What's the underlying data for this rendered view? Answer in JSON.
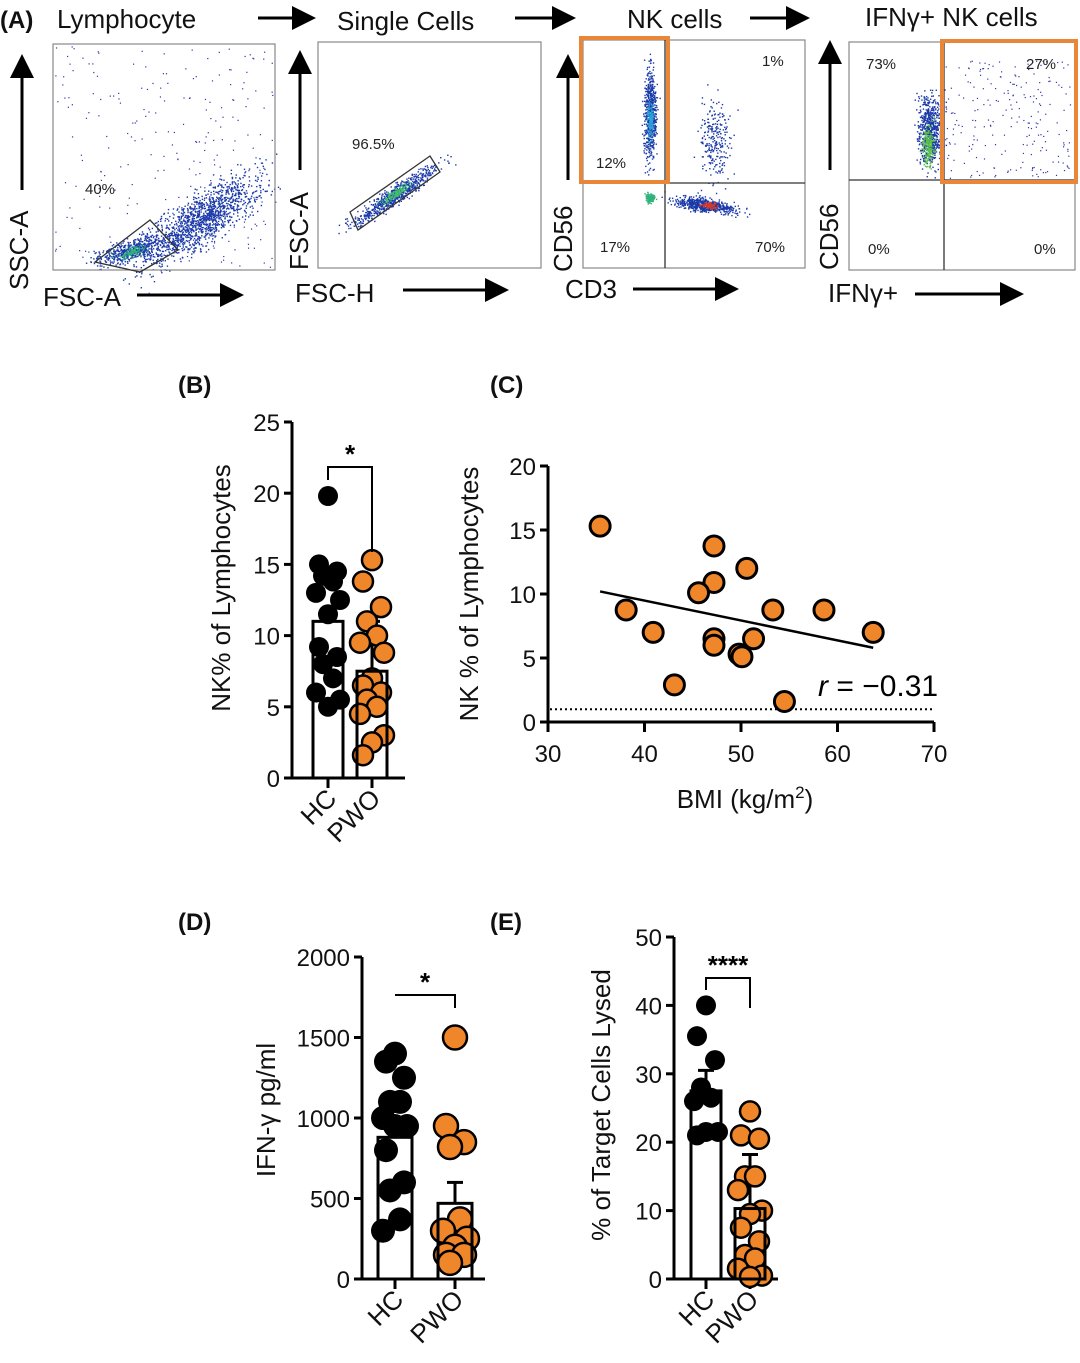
{
  "colors": {
    "hc": "#000000",
    "pwo": "#f0862a",
    "gate": "#e8873a"
  },
  "panel_a": {
    "label": "(A)",
    "steps": [
      "Lymphocyte",
      "Single Cells",
      "NK cells",
      "IFNγ+ NK cells"
    ],
    "plots": [
      {
        "ylabel": "SSC-A",
        "xlabel": "FSC-A",
        "gates": [
          "40%"
        ]
      },
      {
        "ylabel": "FSC-A",
        "xlabel": "FSC-H",
        "gates": [
          "96.5%"
        ]
      },
      {
        "ylabel": "CD56",
        "xlabel": "CD3",
        "gates": [
          "12%",
          "1%",
          "17%",
          "70%"
        ]
      },
      {
        "ylabel": "CD56",
        "xlabel": "IFNγ+",
        "gates": [
          "73%",
          "27%",
          "0%",
          "0%"
        ]
      }
    ]
  },
  "chart_data": [
    {
      "panel": "(B)",
      "type": "bar",
      "categories": [
        "HC",
        "PWO"
      ],
      "ylabel": "NK% of Lymphocytes",
      "ylim": [
        0,
        25
      ],
      "yticks": [
        "0",
        "5",
        "10",
        "15",
        "20",
        "25"
      ],
      "series": [
        {
          "values": [
            11.0,
            7.5
          ],
          "error_upper": [
            null,
            11.0
          ],
          "points": [
            [
              19.8,
              15,
              14.5,
              14.2,
              13.8,
              13,
              12.5,
              11.5,
              9.2,
              8.5,
              8,
              7,
              6,
              5.5,
              5
            ],
            [
              15.3,
              13.8,
              12,
              11,
              10,
              9.5,
              8.8,
              7,
              6.5,
              6,
              5.5,
              5,
              4.5,
              3,
              2.5,
              1.6
            ]
          ]
        }
      ],
      "significance": "*"
    },
    {
      "panel": "(C)",
      "type": "scatter",
      "xlabel": "BMI (kg/m",
      "xlabel_sup": "2",
      "xlabel_end": ")",
      "ylabel": "NK % of Lymphocytes",
      "xlim": [
        30,
        70
      ],
      "ylim": [
        0,
        20
      ],
      "xticks": [
        "30",
        "40",
        "50",
        "60",
        "70"
      ],
      "yticks": [
        "0",
        "5",
        "10",
        "15",
        "20"
      ],
      "points": [
        [
          35.4,
          15.3
        ],
        [
          47.2,
          13.75
        ],
        [
          50.6,
          12.0
        ],
        [
          47.2,
          10.9
        ],
        [
          45.6,
          10.1
        ],
        [
          38.1,
          8.75
        ],
        [
          53.3,
          8.75
        ],
        [
          58.6,
          8.75
        ],
        [
          40.9,
          7.0
        ],
        [
          63.7,
          7.0
        ],
        [
          47.2,
          6.5
        ],
        [
          47.2,
          6.0
        ],
        [
          51.3,
          6.5
        ],
        [
          49.8,
          5.3
        ],
        [
          50.1,
          5.1
        ],
        [
          43.1,
          2.9
        ],
        [
          54.5,
          1.6
        ]
      ],
      "trend": [
        [
          35.4,
          10.2
        ],
        [
          63.7,
          5.8
        ]
      ],
      "reference_line_y": 1,
      "annotation_r": "r",
      "annotation_value": " = −0.31"
    },
    {
      "panel": "(D)",
      "type": "bar",
      "categories": [
        "HC",
        "PWO"
      ],
      "ylabel": "IFN-γ pg/ml",
      "ylim": [
        0,
        2000
      ],
      "yticks": [
        "0",
        "500",
        "1000",
        "1500",
        "2000"
      ],
      "series": [
        {
          "values": [
            880,
            470
          ],
          "error_upper": [
            null,
            600
          ],
          "points": [
            [
              1400,
              1350,
              1250,
              1100,
              1100,
              1000,
              950,
              950,
              800,
              600,
              550,
              370,
              300
            ],
            [
              1500,
              950,
              850,
              820,
              370,
              300,
              250,
              200,
              150,
              150,
              100
            ]
          ]
        }
      ],
      "significance": "*"
    },
    {
      "panel": "(E)",
      "type": "bar",
      "categories": [
        "HC",
        "PWO"
      ],
      "ylabel": "% of Target Cells Lysed",
      "ylim": [
        0,
        50
      ],
      "yticks": [
        "0",
        "10",
        "20",
        "30",
        "40",
        "50"
      ],
      "series": [
        {
          "values": [
            27.5,
            10.3
          ],
          "error_upper": [
            30.5,
            18.2
          ],
          "points": [
            [
              40,
              35.5,
              32,
              28,
              26.5,
              26,
              21.5,
              21.5,
              21
            ],
            [
              24.5,
              21,
              20.5,
              15,
              15,
              13,
              10,
              9.5,
              7.5,
              5.5,
              3.5,
              3,
              1.5,
              0.5,
              0.3
            ]
          ]
        }
      ],
      "significance": "****"
    }
  ]
}
